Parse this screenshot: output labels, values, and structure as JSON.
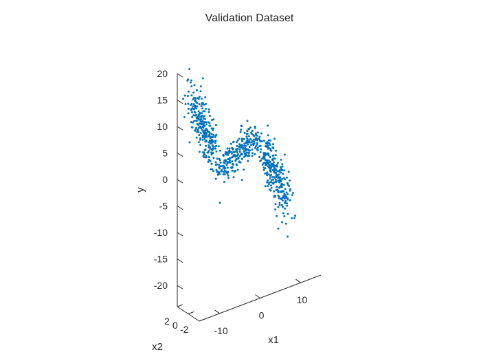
{
  "chart_data": {
    "type": "scatter",
    "view": "3d",
    "title": "Validation Dataset",
    "xlabel": "x1",
    "ylabel": "x2",
    "zlabel": "y",
    "xlim": [
      -15,
      15
    ],
    "ylim": [
      -2,
      2
    ],
    "zlim": [
      -24,
      20
    ],
    "x_ticks": [
      "-10",
      "0",
      "10"
    ],
    "y_ticks": [
      "-2",
      "0",
      "2"
    ],
    "z_ticks": [
      "-20",
      "-15",
      "-10",
      "-5",
      "0",
      "5",
      "10",
      "15",
      "20"
    ],
    "grid": false,
    "point_color": "#0072BD",
    "clusters": [
      {
        "x_range": [
          -14,
          -9
        ],
        "y_sd": 0.8,
        "z_center": 10.5,
        "z_slope": -2.4,
        "z_sd": 2.3,
        "count": 260
      },
      {
        "x_range": [
          -7.5,
          2
        ],
        "y_sd": 0.8,
        "z_center": 2.6,
        "z_slope": 0.45,
        "z_sd": 1.0,
        "count": 260
      },
      {
        "x_range": [
          4,
          9
        ],
        "y_sd": 0.8,
        "z_center": -4.0,
        "z_slope": -2.0,
        "z_sd": 2.4,
        "count": 260
      }
    ],
    "outliers": [
      {
        "x": -14.4,
        "y": 0,
        "z": 19.5
      },
      {
        "x": -7.2,
        "y": 0,
        "z": -5.3
      },
      {
        "x": 9.5,
        "y": 0,
        "z": -16.5
      },
      {
        "x": 1.5,
        "y": 0,
        "z": 6.3
      },
      {
        "x": 10.5,
        "y": 0,
        "z": -13.3
      }
    ]
  }
}
